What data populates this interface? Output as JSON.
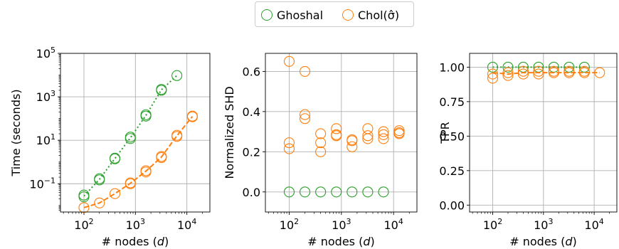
{
  "legend": {
    "items": [
      {
        "label": "Ghoshal",
        "color": "#2ca02c"
      },
      {
        "label": "Chol(σ̂)",
        "color": "#ff7f0e"
      }
    ],
    "placement": "top-center"
  },
  "colors": {
    "ghoshal": "#2ca02c",
    "chol": "#ff7f0e",
    "grid": "#b0b0b0"
  },
  "chart_data": [
    {
      "type": "scatter",
      "panel": "time",
      "xlabel": "# nodes (d)",
      "ylabel": "Time (seconds)",
      "xscale": "log",
      "yscale": "log",
      "xlim": [
        35,
        28000
      ],
      "ylim": [
        0.005,
        100000
      ],
      "xticks": [
        {
          "v": 100,
          "label": "10^2"
        },
        {
          "v": 1000,
          "label": "10^3"
        },
        {
          "v": 10000,
          "label": "10^4"
        }
      ],
      "yticks": [
        {
          "v": 0.1,
          "label": "10^-1"
        },
        {
          "v": 10,
          "label": "10^1"
        },
        {
          "v": 1000,
          "label": "10^3"
        },
        {
          "v": 100000,
          "label": "10^5"
        }
      ],
      "grid": true,
      "series": [
        {
          "name": "Ghoshal",
          "color": "#2ca02c",
          "linestyle": "dotted",
          "x": [
            100,
            100,
            200,
            200,
            400,
            400,
            800,
            800,
            1600,
            1600,
            3200,
            3200,
            6400
          ],
          "y": [
            0.03,
            0.025,
            0.17,
            0.15,
            1.5,
            1.4,
            14,
            12,
            150,
            130,
            2200,
            2000,
            9500
          ],
          "line_x": [
            100,
            200,
            400,
            800,
            1600,
            3200,
            6400
          ],
          "line_y": [
            0.027,
            0.16,
            1.45,
            13,
            140,
            2100,
            9500
          ]
        },
        {
          "name": "Chol(σ̂)",
          "color": "#ff7f0e",
          "linestyle": "dashed",
          "x": [
            100,
            200,
            400,
            800,
            800,
            1600,
            1600,
            3200,
            3200,
            6400,
            6400,
            12800,
            12800
          ],
          "y": [
            0.008,
            0.013,
            0.035,
            0.11,
            0.1,
            0.4,
            0.35,
            1.8,
            1.6,
            17,
            15,
            130,
            120
          ],
          "line_x": [
            100,
            200,
            400,
            800,
            1600,
            3200,
            6400,
            12800
          ],
          "line_y": [
            0.008,
            0.013,
            0.035,
            0.105,
            0.38,
            1.7,
            16,
            125
          ]
        }
      ]
    },
    {
      "type": "scatter",
      "panel": "shd",
      "xlabel": "# nodes (d)",
      "ylabel": "Normalized SHD",
      "xscale": "log",
      "yscale": "linear",
      "xlim": [
        35,
        28000
      ],
      "ylim": [
        -0.1,
        0.69
      ],
      "xticks": [
        {
          "v": 100,
          "label": "10^2"
        },
        {
          "v": 1000,
          "label": "10^3"
        },
        {
          "v": 10000,
          "label": "10^4"
        }
      ],
      "yticks": [
        {
          "v": 0.0,
          "label": "0.0"
        },
        {
          "v": 0.2,
          "label": "0.2"
        },
        {
          "v": 0.4,
          "label": "0.4"
        },
        {
          "v": 0.6,
          "label": "0.6"
        }
      ],
      "grid": true,
      "series": [
        {
          "name": "Ghoshal",
          "color": "#2ca02c",
          "linestyle": "none",
          "x": [
            100,
            200,
            400,
            800,
            1600,
            3200,
            6400
          ],
          "y": [
            0.0,
            0.0,
            0.0,
            0.0,
            0.0,
            0.0,
            0.0
          ]
        },
        {
          "name": "Chol(σ̂)",
          "color": "#ff7f0e",
          "linestyle": "none",
          "x": [
            100,
            100,
            100,
            200,
            200,
            200,
            400,
            400,
            400,
            800,
            800,
            800,
            1600,
            1600,
            1600,
            3200,
            3200,
            3200,
            6400,
            6400,
            6400,
            12800,
            12800,
            12800
          ],
          "y": [
            0.65,
            0.245,
            0.215,
            0.6,
            0.385,
            0.365,
            0.29,
            0.245,
            0.2,
            0.315,
            0.285,
            0.28,
            0.26,
            0.255,
            0.225,
            0.315,
            0.28,
            0.265,
            0.3,
            0.285,
            0.265,
            0.305,
            0.295,
            0.29
          ]
        }
      ]
    },
    {
      "type": "scatter",
      "panel": "tpr",
      "xlabel": "# nodes (d)",
      "ylabel": "TPR",
      "xscale": "log",
      "yscale": "linear",
      "xlim": [
        35,
        28000
      ],
      "ylim": [
        -0.05,
        1.1
      ],
      "xticks": [
        {
          "v": 100,
          "label": "10^2"
        },
        {
          "v": 1000,
          "label": "10^3"
        },
        {
          "v": 10000,
          "label": "10^4"
        }
      ],
      "yticks": [
        {
          "v": 0.0,
          "label": "0.00"
        },
        {
          "v": 0.25,
          "label": "0.25"
        },
        {
          "v": 0.5,
          "label": "0.50"
        },
        {
          "v": 0.75,
          "label": "0.75"
        },
        {
          "v": 1.0,
          "label": "1.00"
        }
      ],
      "grid": true,
      "series": [
        {
          "name": "Ghoshal",
          "color": "#2ca02c",
          "linestyle": "dotted",
          "x": [
            100,
            200,
            400,
            800,
            1600,
            3200,
            6400
          ],
          "y": [
            1.0,
            1.0,
            1.0,
            1.0,
            1.0,
            1.0,
            1.0
          ],
          "line_x": [
            100,
            200,
            400,
            800,
            1600,
            3200,
            6400
          ],
          "line_y": [
            1.0,
            1.0,
            1.0,
            1.0,
            1.0,
            1.0,
            1.0
          ]
        },
        {
          "name": "Chol(σ̂)",
          "color": "#ff7f0e",
          "linestyle": "dashed",
          "x": [
            100,
            100,
            200,
            200,
            400,
            400,
            800,
            800,
            1600,
            1600,
            3200,
            3200,
            6400,
            6400,
            12800
          ],
          "y": [
            0.95,
            0.92,
            0.96,
            0.94,
            0.97,
            0.95,
            0.97,
            0.95,
            0.97,
            0.96,
            0.97,
            0.96,
            0.97,
            0.96,
            0.96
          ],
          "line_x": [
            100,
            200,
            400,
            800,
            1600,
            3200,
            6400,
            12800
          ],
          "line_y": [
            0.96,
            0.95,
            0.96,
            0.96,
            0.96,
            0.96,
            0.96,
            0.96
          ]
        }
      ]
    }
  ]
}
